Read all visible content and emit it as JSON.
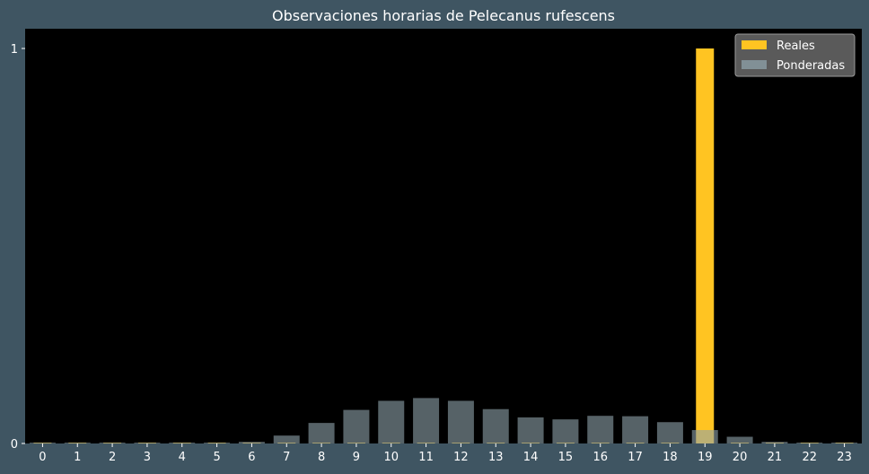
{
  "chart_data": {
    "type": "bar",
    "title": "Observaciones horarias de Pelecanus rufescens",
    "xlabel": "",
    "ylabel": "",
    "categories": [
      "0",
      "1",
      "2",
      "3",
      "4",
      "5",
      "6",
      "7",
      "8",
      "9",
      "10",
      "11",
      "12",
      "13",
      "14",
      "15",
      "16",
      "17",
      "18",
      "19",
      "20",
      "21",
      "22",
      "23"
    ],
    "yticks": [
      "0",
      "1"
    ],
    "ylim": [
      0,
      1.05
    ],
    "grid": false,
    "legend_position": "top-right",
    "series": [
      {
        "name": "Reales",
        "color": "#ffc422",
        "values": [
          0,
          0,
          0,
          0,
          0,
          0,
          0,
          0,
          0,
          0,
          0,
          0,
          0,
          0,
          0,
          0,
          0,
          0,
          0,
          1,
          0,
          0,
          0,
          0
        ]
      },
      {
        "name": "Ponderadas",
        "color": "#8fa3ab",
        "values": [
          0.002,
          0.002,
          0.002,
          0.002,
          0.002,
          0.002,
          0.004,
          0.02,
          0.052,
          0.085,
          0.108,
          0.115,
          0.108,
          0.087,
          0.066,
          0.061,
          0.07,
          0.069,
          0.054,
          0.034,
          0.017,
          0.004,
          0.002,
          0.002
        ]
      }
    ]
  }
}
